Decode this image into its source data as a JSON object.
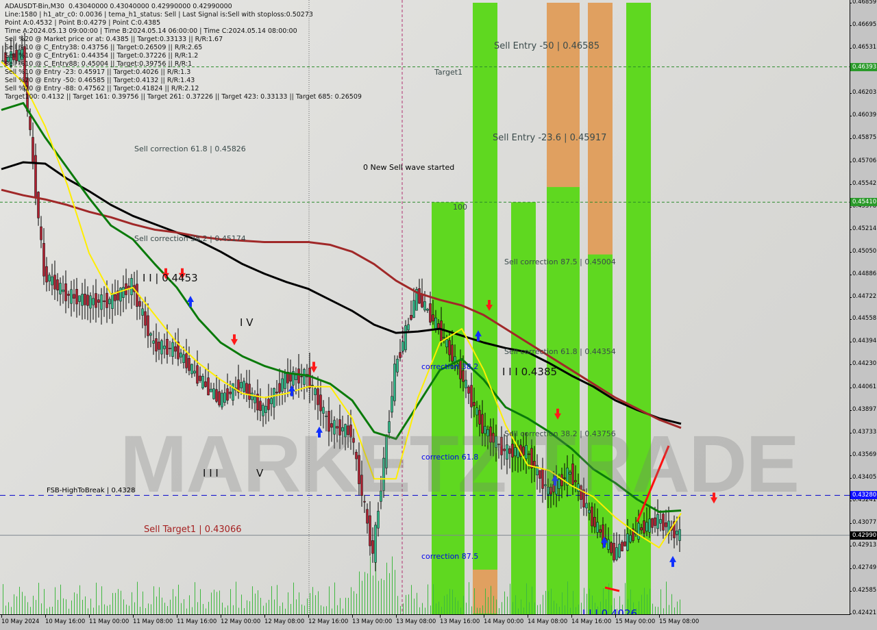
{
  "header": {
    "lines": [
      "ADAUSDT-Bin,M30  0.43040000 0.43040000 0.42990000 0.42990000",
      "Line:1580 | h1_atr_c0: 0.0036 | tema_h1_status: Sell | Last Signal is:Sell with stoploss:0.50273",
      "Point A:0.4532 | Point B:0.4279 | Point C:0.4385",
      "Time A:2024.05.13 09:00:00 | Time B:2024.05.14 06:00:00 | Time C:2024.05.14 08:00:00",
      "Sell %20 @ Market price or at: 0.4385 || Target:0.33133 || R/R:1.67",
      "Sell %10 @ C_Entry38: 0.43756 || Target:0.26509 || R/R:2.65",
      "Sell %10 @ C_Entry61: 0.44354 || Target:0.37226 || R/R:1.2",
      "Sell %10 @ C_Entry88: 0.45004 || Target:0.39756 || R/R:1",
      "Sell %10 @ Entry -23: 0.45917 || Target:0.4026 || R/R:1.3",
      "Sell %20 @ Entry -50: 0.46585 || Target:0.4132 || R/R:1.43",
      "Sell %20 @ Entry -88: 0.47562 || Target:0.41824 || R/R:2.12",
      "Target100: 0.4132 || Target 161: 0.39756 || Target 261: 0.37226 || Target 423: 0.33133 || Target 685: 0.26509"
    ]
  },
  "annotations": {
    "sell_entry_50": "Sell Entry -50 | 0.46585",
    "target1": "Target1",
    "sell_entry_236": "Sell Entry -23.6 | 0.45917",
    "sell_corr_618_a": "Sell correction 61.8 | 0.45826",
    "new_wave": "0 New Sell wave started",
    "label_100": "100",
    "sell_corr_382_a": "Sell correction 38.2 | 0.45174",
    "sell_corr_875": "Sell correction 87.5 | 0.45004",
    "wave_ii": "I I | 0.4453",
    "wave_iv": "I V",
    "sell_corr_618_b": "Sell correction 61.8 | 0.44354",
    "corr_382": "correction 38.2",
    "wave_iii_price": "I I I 0.4385",
    "sell_corr_382_b": "Sell correction 38.2 | 0.43756",
    "corr_618": "correction 61.8",
    "wave_iii": "I I I",
    "wave_v": "V",
    "fsb": "FSB-HighToBreak | 0.4328",
    "sell_target1": "Sell Target1 | 0.43066",
    "corr_875": "correction 87.5",
    "wave_bottom": "I I I 0.4026"
  },
  "watermark": "MARKETZ TRADE",
  "colors": {
    "green_band": "#5fd820",
    "orange_band": "#e0a060",
    "ma_black": "#000000",
    "ma_red": "#a02828",
    "ma_green": "#0a7a0a",
    "ma_yellow": "#ffee00",
    "bull_candle": "#2fb888",
    "bear_candle": "#b02030",
    "blue_line": "#0000cc",
    "level_green": "#2a8a2a"
  },
  "chart_data": {
    "type": "candlestick",
    "symbol": "ADAUSDT-Bin",
    "timeframe": "M30",
    "ylim": [
      0.42421,
      0.46859
    ],
    "y_ticks": [
      "0.46859",
      "0.46695",
      "0.46531",
      "0.46367",
      "0.46203",
      "0.46039",
      "0.45875",
      "0.45706",
      "0.45542",
      "0.45378",
      "0.45214",
      "0.45050",
      "0.44886",
      "0.44722",
      "0.44558",
      "0.44394",
      "0.44230",
      "0.44061",
      "0.43897",
      "0.43733",
      "0.43569",
      "0.43405",
      "0.43241",
      "0.43077",
      "0.42913",
      "0.42749",
      "0.42585",
      "0.42421"
    ],
    "x_ticks": [
      "10 May 2024",
      "10 May 16:00",
      "11 May 00:00",
      "11 May 08:00",
      "11 May 16:00",
      "12 May 00:00",
      "12 May 08:00",
      "12 May 16:00",
      "13 May 00:00",
      "13 May 08:00",
      "13 May 16:00",
      "14 May 00:00",
      "14 May 08:00",
      "14 May 16:00",
      "15 May 00:00",
      "15 May 08:00"
    ],
    "x_start": "2024-05-10 00:00",
    "x_step_hours": 4,
    "close": [
      0.4643,
      0.4649,
      0.4489,
      0.4474,
      0.4469,
      0.4469,
      0.4481,
      0.4437,
      0.4434,
      0.4414,
      0.4397,
      0.4409,
      0.4389,
      0.4413,
      0.4415,
      0.4379,
      0.4374,
      0.4285,
      0.4419,
      0.4474,
      0.4449,
      0.4417,
      0.4377,
      0.436,
      0.436,
      0.433,
      0.4345,
      0.431,
      0.4285,
      0.4302,
      0.431,
      0.4299
    ],
    "series": [
      {
        "key": "ma_black",
        "values": [
          0.4565,
          0.457,
          0.4569,
          0.4558,
          0.4549,
          0.4539,
          0.4531,
          0.4525,
          0.4519,
          0.4513,
          0.4505,
          0.4496,
          0.4489,
          0.4483,
          0.4478,
          0.447,
          0.4462,
          0.4452,
          0.4446,
          0.4447,
          0.4449,
          0.4444,
          0.4439,
          0.4435,
          0.4432,
          0.4424,
          0.4415,
          0.4407,
          0.4397,
          0.439,
          0.4384,
          0.438
        ]
      },
      {
        "key": "ma_red",
        "values": [
          0.455,
          0.4546,
          0.4543,
          0.4539,
          0.4534,
          0.453,
          0.4525,
          0.4521,
          0.4519,
          0.4516,
          0.4514,
          0.4513,
          0.4512,
          0.4512,
          0.4512,
          0.451,
          0.4505,
          0.4496,
          0.4484,
          0.4475,
          0.447,
          0.4466,
          0.4459,
          0.4449,
          0.4439,
          0.4429,
          0.4419,
          0.4409,
          0.4399,
          0.4391,
          0.4383,
          0.4377
        ]
      },
      {
        "key": "ma_green",
        "values": [
          0.4608,
          0.4613,
          0.4588,
          0.4566,
          0.4544,
          0.4524,
          0.4514,
          0.4496,
          0.4479,
          0.4456,
          0.4439,
          0.4429,
          0.4422,
          0.4417,
          0.4415,
          0.4409,
          0.4397,
          0.4374,
          0.4369,
          0.4394,
          0.4419,
          0.4427,
          0.4412,
          0.4392,
          0.4384,
          0.4374,
          0.4362,
          0.4347,
          0.4337,
          0.4325,
          0.4316,
          0.4317
        ]
      },
      {
        "key": "ma_yellow",
        "values": [
          0.4643,
          0.4628,
          0.4596,
          0.4554,
          0.4504,
          0.4474,
          0.4479,
          0.4459,
          0.4439,
          0.4424,
          0.4412,
          0.4402,
          0.4399,
          0.4402,
          0.4407,
          0.4407,
          0.4384,
          0.434,
          0.434,
          0.4399,
          0.4439,
          0.4449,
          0.4419,
          0.4379,
          0.435,
          0.4346,
          0.4335,
          0.4327,
          0.4312,
          0.43,
          0.429,
          0.4315
        ]
      }
    ],
    "bands": [
      {
        "start": "2024-05-13 06:30",
        "end": "2024-05-13 12:30",
        "top": 0.4541,
        "orange_top": null,
        "orange_bottom": null
      },
      {
        "start": "2024-05-13 14:00",
        "end": "2024-05-13 18:30",
        "top": 0.46859,
        "orange_top": 0.4274,
        "orange_bottom": 0.42421
      },
      {
        "start": "2024-05-13 21:00",
        "end": "2024-05-14 01:30",
        "top": 0.4541,
        "orange_top": null,
        "orange_bottom": null
      },
      {
        "start": "2024-05-14 03:30",
        "end": "2024-05-14 09:30",
        "top": 0.46859,
        "orange_top": 0.46859,
        "orange_bottom": 0.4552
      },
      {
        "start": "2024-05-14 11:00",
        "end": "2024-05-14 15:30",
        "top": 0.46859,
        "orange_top": 0.46859,
        "orange_bottom": 0.4503
      },
      {
        "start": "2024-05-14 18:00",
        "end": "2024-05-14 22:30",
        "top": 0.46859,
        "orange_top": null,
        "orange_bottom": null
      }
    ],
    "levels": [
      {
        "price": 0.46393,
        "label": "0.46393",
        "style": "green-dashed"
      },
      {
        "price": 0.4541,
        "label": "0.45410",
        "style": "green-dashed"
      },
      {
        "price": 0.4328,
        "label": "0.43280",
        "style": "blue-dashed"
      },
      {
        "price": 0.4299,
        "label": "0.42990",
        "style": "gray-solid"
      }
    ],
    "signals": [
      {
        "t": "2024-05-11 06:00",
        "price": 0.4488,
        "type": "sell"
      },
      {
        "t": "2024-05-11 09:00",
        "price": 0.4488,
        "type": "sell"
      },
      {
        "t": "2024-05-11 10:30",
        "price": 0.447,
        "type": "buy"
      },
      {
        "t": "2024-05-11 18:30",
        "price": 0.444,
        "type": "sell"
      },
      {
        "t": "2024-05-12 05:00",
        "price": 0.4405,
        "type": "buy"
      },
      {
        "t": "2024-05-12 09:00",
        "price": 0.442,
        "type": "sell"
      },
      {
        "t": "2024-05-12 10:00",
        "price": 0.4375,
        "type": "buy"
      },
      {
        "t": "2024-05-13 15:00",
        "price": 0.4445,
        "type": "buy"
      },
      {
        "t": "2024-05-13 17:00",
        "price": 0.4465,
        "type": "sell"
      },
      {
        "t": "2024-05-14 05:30",
        "price": 0.4386,
        "type": "sell"
      },
      {
        "t": "2024-05-14 05:00",
        "price": 0.434,
        "type": "buy"
      },
      {
        "t": "2024-05-14 14:00",
        "price": 0.4295,
        "type": "buy"
      },
      {
        "t": "2024-05-15 02:30",
        "price": 0.4281,
        "type": "buy"
      },
      {
        "t": "2024-05-15 10:00",
        "price": 0.4325,
        "type": "sell"
      }
    ]
  }
}
